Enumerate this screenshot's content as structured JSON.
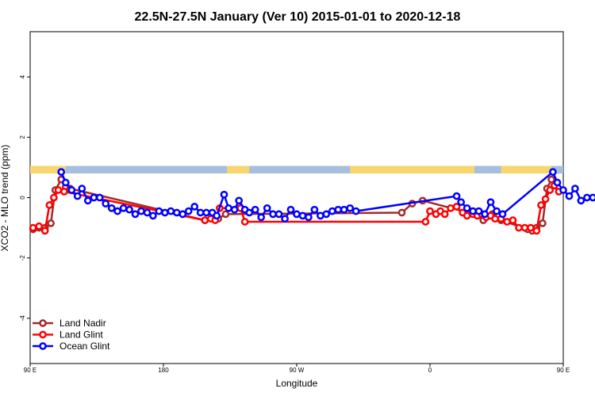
{
  "chart_data": {
    "type": "line",
    "title": "22.5N-27.5N January (Ver 10)   2015-01-01 to 2020-12-18",
    "xlabel": "Longitude",
    "ylabel": "XCO2 - MLO trend (ppm)",
    "xlim": [
      -90,
      270
    ],
    "ylim": [
      -5.5,
      5.5
    ],
    "x_ticks": [
      {
        "value": -90,
        "label": "90 E"
      },
      {
        "value": 0,
        "label": "180"
      },
      {
        "value": 90,
        "label": "90 W"
      },
      {
        "value": 180,
        "label": "0"
      },
      {
        "value": 270,
        "label": "90 E"
      },
      {
        "value": 360,
        "label": "180"
      }
    ],
    "y_ticks": [
      {
        "value": -4,
        "label": "-4"
      },
      {
        "value": -2,
        "label": "-2"
      },
      {
        "value": 0,
        "label": "0"
      },
      {
        "value": 2,
        "label": "2"
      },
      {
        "value": 4,
        "label": "4"
      }
    ],
    "grid": false,
    "legend_position": "bottom-left",
    "land_mask": {
      "y_range": [
        0.8,
        1.05
      ],
      "land_color": "#f9d56e",
      "ocean_color": "#a5bfdc",
      "land_segments": [
        [
          -90,
          -66
        ],
        [
          43,
          58
        ],
        [
          126,
          210
        ],
        [
          228,
          262
        ]
      ]
    },
    "series": [
      {
        "name": "Land Nadir",
        "color": "#a52a2a",
        "x": [
          -88,
          -84,
          -80,
          -76,
          -73,
          -69,
          -66,
          -63,
          28,
          34,
          37,
          42,
          161,
          168,
          175,
          210,
          216,
          222,
          228,
          246,
          249,
          252,
          256,
          259,
          262
        ],
        "y": [
          -1.05,
          -1.0,
          -1.0,
          -0.85,
          0.25,
          0.6,
          0.35,
          0.3,
          -0.75,
          -0.7,
          -0.7,
          -0.55,
          -0.5,
          -0.2,
          -0.1,
          -0.55,
          -0.75,
          -0.55,
          -0.75,
          -1.05,
          -1.1,
          -1.0,
          -0.85,
          0.3,
          0.6
        ]
      },
      {
        "name": "Land Glint",
        "color": "#ff0000",
        "x": [
          -88,
          -84,
          -80,
          -77,
          -74,
          -71,
          -67,
          28,
          32,
          35,
          38,
          52,
          55,
          177,
          180,
          184,
          187,
          190,
          194,
          198,
          202,
          205,
          209,
          212,
          215,
          218,
          221,
          224,
          228,
          232,
          236,
          240,
          244,
          248,
          252,
          255,
          258,
          261,
          264,
          267
        ],
        "y": [
          -1.0,
          -0.95,
          -1.1,
          -0.25,
          0.0,
          0.25,
          0.2,
          -0.75,
          -0.7,
          -0.75,
          -0.35,
          -0.35,
          -0.8,
          -0.8,
          -0.45,
          -0.55,
          -0.45,
          -0.55,
          -0.35,
          -0.3,
          -0.5,
          -0.6,
          -0.55,
          -0.6,
          -0.55,
          -0.65,
          -0.6,
          -0.7,
          -0.7,
          -0.8,
          -0.75,
          -1.0,
          -1.0,
          -1.0,
          -1.1,
          -0.25,
          -0.05,
          0.25,
          0.4,
          0.2
        ]
      },
      {
        "name": "Ocean Glint",
        "color": "#0000ff",
        "x": [
          -69,
          -66,
          -62,
          -58,
          -55,
          -51,
          -47,
          -43,
          -39,
          -35,
          -31,
          -27,
          -23,
          -19,
          -15,
          -11,
          -7,
          -3,
          1,
          5,
          9,
          13,
          17,
          21,
          25,
          29,
          33,
          36,
          41,
          44,
          48,
          51,
          55,
          58,
          62,
          66,
          70,
          74,
          78,
          82,
          86,
          90,
          94,
          98,
          102,
          106,
          110,
          114,
          118,
          122,
          126,
          130,
          198,
          201,
          205,
          209,
          213,
          217,
          221,
          225,
          229,
          263,
          266,
          270,
          274,
          278,
          282,
          286,
          290,
          294,
          298,
          302,
          306,
          310
        ],
        "y": [
          0.85,
          0.5,
          0.25,
          0.05,
          0.3,
          -0.1,
          0.0,
          0.0,
          -0.2,
          -0.35,
          -0.45,
          -0.35,
          -0.4,
          -0.55,
          -0.45,
          -0.5,
          -0.6,
          -0.45,
          -0.5,
          -0.45,
          -0.5,
          -0.55,
          -0.45,
          -0.3,
          -0.5,
          -0.5,
          -0.5,
          -0.6,
          0.1,
          -0.35,
          -0.4,
          -0.1,
          -0.4,
          -0.5,
          -0.4,
          -0.65,
          -0.35,
          -0.55,
          -0.55,
          -0.7,
          -0.4,
          -0.55,
          -0.6,
          -0.65,
          -0.4,
          -0.6,
          -0.55,
          -0.45,
          -0.4,
          -0.4,
          -0.35,
          -0.45,
          0.05,
          -0.15,
          -0.35,
          -0.45,
          -0.45,
          -0.55,
          -0.15,
          -0.45,
          -0.55,
          0.85,
          0.5,
          0.25,
          0.05,
          0.3,
          -0.1,
          0.0,
          0.0,
          -0.2,
          -0.35,
          -0.45,
          -0.35,
          -0.4
        ]
      }
    ]
  }
}
